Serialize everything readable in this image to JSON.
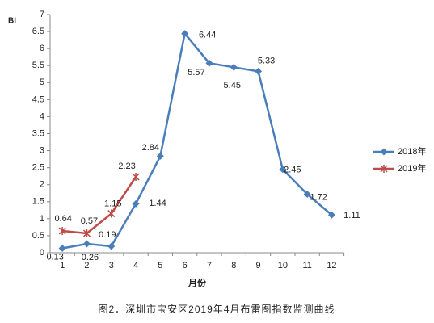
{
  "chart_data": {
    "type": "line",
    "caption": "图2．深圳市宝安区2019年4月布雷图指数监测曲线",
    "y_label": "BI",
    "x_label": "月份",
    "categories": [
      "1",
      "2",
      "3",
      "4",
      "5",
      "6",
      "7",
      "8",
      "9",
      "10",
      "11",
      "12"
    ],
    "series": [
      {
        "name": "2018年",
        "color": "#4a7ebb",
        "values": [
          0.13,
          0.26,
          0.19,
          1.44,
          2.84,
          6.44,
          5.57,
          5.45,
          5.33,
          2.45,
          1.72,
          1.11
        ]
      },
      {
        "name": "2019年",
        "color": "#be4b48",
        "values": [
          0.64,
          0.57,
          1.15,
          2.23,
          null,
          null,
          null,
          null,
          null,
          null,
          null,
          null
        ]
      }
    ],
    "ylim": [
      0,
      7
    ],
    "yticks": [
      0,
      0.5,
      1,
      1.5,
      2,
      2.5,
      3,
      3.5,
      4,
      4.5,
      5,
      5.5,
      6,
      6.5,
      7
    ],
    "legend": "right"
  }
}
